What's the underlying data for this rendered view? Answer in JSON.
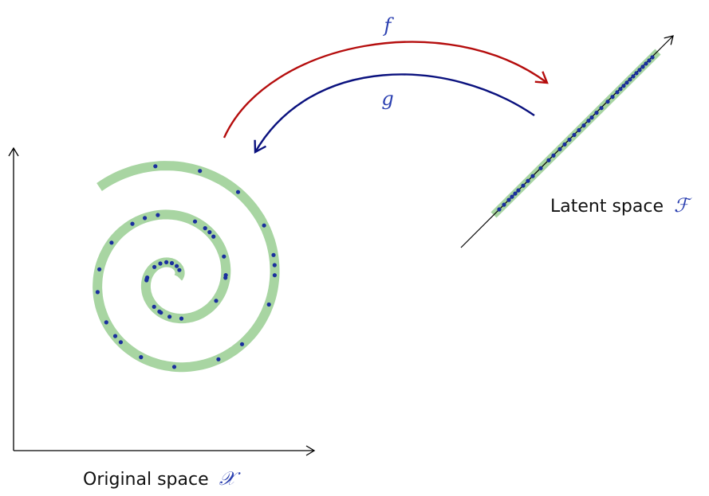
{
  "labels": {
    "original_space": "Original space",
    "original_symbol": "𝒳",
    "latent_space": "Latent space",
    "latent_symbol": "ℱ",
    "f": "f",
    "g": "g"
  },
  "colors": {
    "axis": "#000000",
    "manifold": "#a8d5a2",
    "points": "#1a2f9e",
    "arrow_f": "#b50d0d",
    "arrow_g": "#0a117e",
    "symbol": "#2a3fb0"
  },
  "spiral_points_theta": [
    1.0,
    1.35,
    1.7,
    2.0,
    2.3,
    2.6,
    3.1,
    3.15,
    3.2,
    4.1,
    4.3,
    4.35,
    4.6,
    4.9,
    5.8,
    6.3,
    6.35,
    6.7,
    7.1,
    7.2,
    7.3,
    7.5,
    8.1,
    8.3,
    8.5,
    8.9,
    9.3,
    9.6,
    10.0,
    10.2,
    10.3,
    10.6,
    11.0,
    11.5,
    11.8,
    12.3,
    12.6,
    12.7,
    12.8,
    13.1,
    13.5,
    13.9,
    14.3
  ],
  "latent_points_t": [
    0.02,
    0.05,
    0.08,
    0.1,
    0.12,
    0.14,
    0.17,
    0.2,
    0.23,
    0.28,
    0.33,
    0.36,
    0.4,
    0.43,
    0.46,
    0.49,
    0.52,
    0.55,
    0.58,
    0.6,
    0.63,
    0.66,
    0.7,
    0.73,
    0.76,
    0.78,
    0.8,
    0.82,
    0.84,
    0.86,
    0.88,
    0.9,
    0.92,
    0.94,
    0.96,
    0.98
  ]
}
